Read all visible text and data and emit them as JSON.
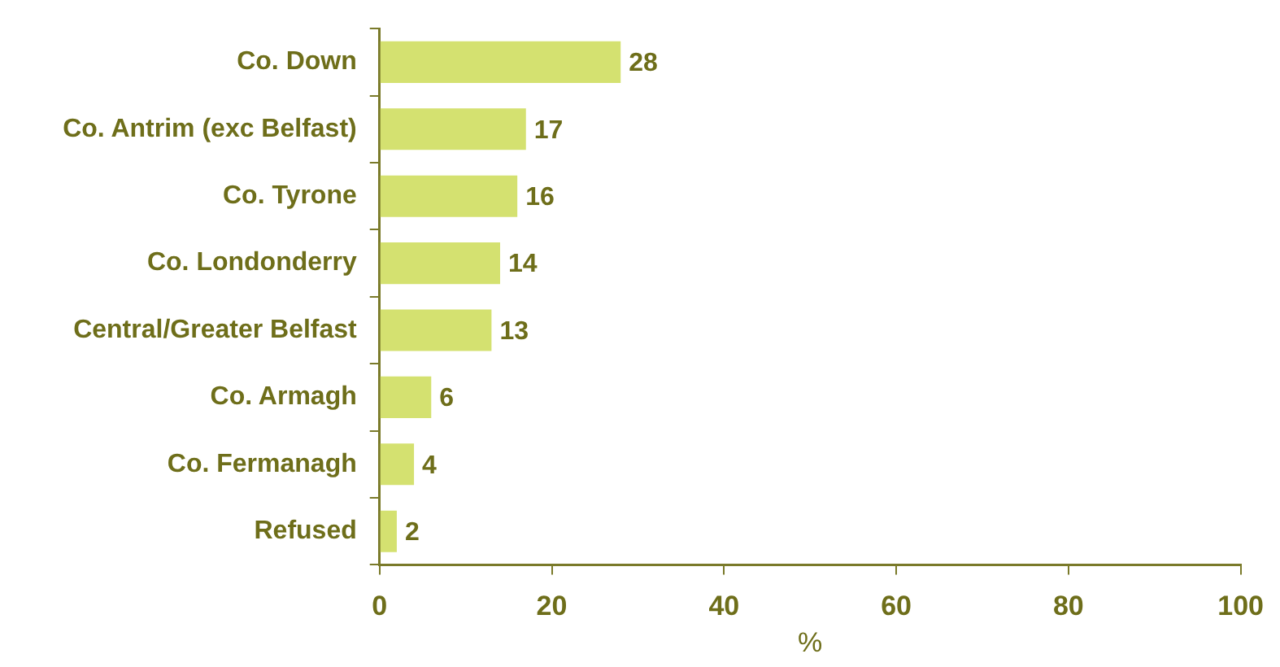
{
  "chart_data": {
    "type": "bar",
    "orientation": "horizontal",
    "xlabel": "%",
    "categories": [
      "Co. Down",
      "Co. Antrim (exc Belfast)",
      "Co. Tyrone",
      "Co. Londonderry",
      "Central/Greater Belfast",
      "Co. Armagh",
      "Co. Fermanagh",
      "Refused"
    ],
    "values": [
      28,
      17,
      16,
      14,
      13,
      6,
      4,
      2
    ],
    "color": "#d4e170",
    "xlim": [
      0,
      100
    ],
    "xticks": [
      0,
      20,
      40,
      60,
      80,
      100
    ],
    "grid": false,
    "legend": false,
    "data_labels": true
  }
}
